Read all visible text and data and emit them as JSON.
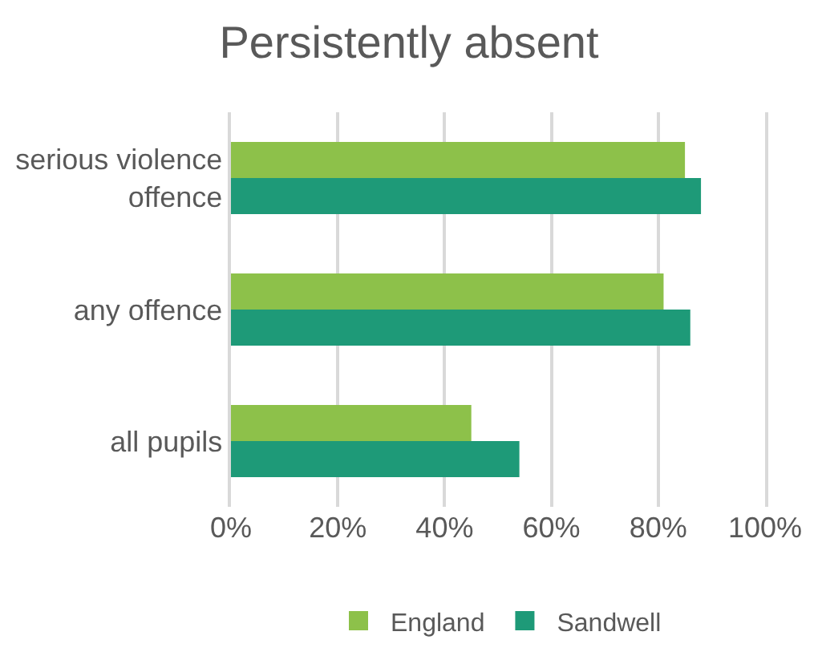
{
  "chart_data": {
    "type": "bar",
    "orientation": "horizontal",
    "title": "Persistently absent",
    "categories": [
      "serious violence offence",
      "any offence",
      "all pupils"
    ],
    "series": [
      {
        "name": "England",
        "color": "#8dc14a",
        "values": [
          85,
          81,
          45
        ]
      },
      {
        "name": "Sandwell",
        "color": "#1e9a78",
        "values": [
          88,
          86,
          54
        ]
      }
    ],
    "xlim": [
      0,
      100
    ],
    "xticks": [
      {
        "value": 0,
        "label": "0%"
      },
      {
        "value": 20,
        "label": "20%"
      },
      {
        "value": 40,
        "label": "40%"
      },
      {
        "value": 60,
        "label": "60%"
      },
      {
        "value": 80,
        "label": "80%"
      },
      {
        "value": 100,
        "label": "100%"
      }
    ],
    "grid": "x",
    "legend": "bottom"
  }
}
